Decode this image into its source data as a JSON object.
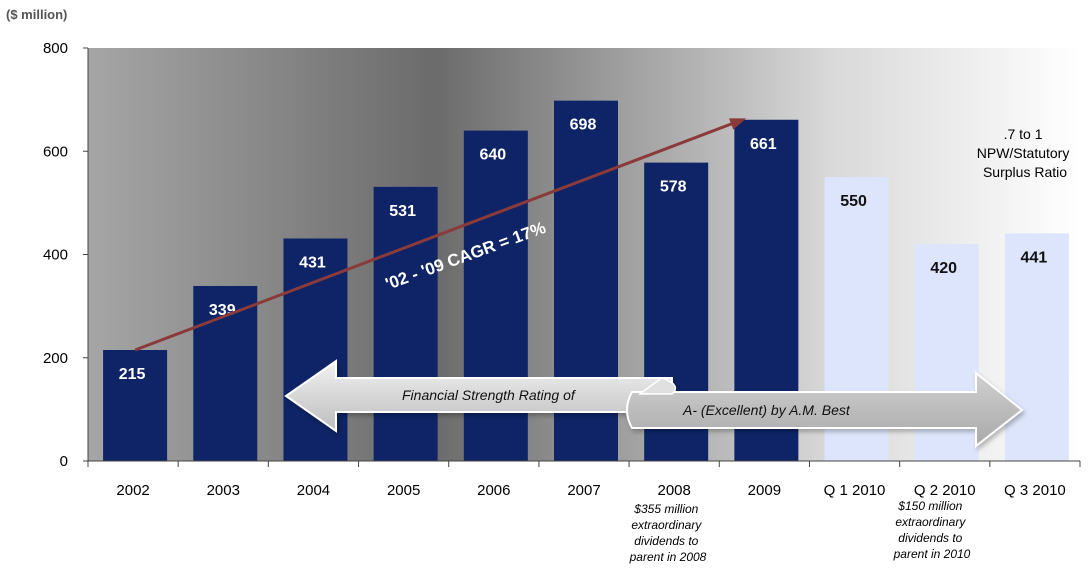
{
  "chart_data": {
    "type": "bar",
    "unit_label": "($ million)",
    "categories": [
      "2002",
      "2003",
      "2004",
      "2005",
      "2006",
      "2007",
      "2008",
      "2009",
      "Q 1 2010",
      "Q 2 2010",
      "Q 3 2010"
    ],
    "values": [
      215,
      339,
      431,
      531,
      640,
      698,
      578,
      661,
      550,
      420,
      441
    ],
    "value_labels": [
      "215",
      "339",
      "431",
      "531",
      "640",
      "698",
      "578",
      "661",
      "550",
      "420",
      "441"
    ],
    "ylim": [
      0,
      800
    ],
    "yticks": [
      0,
      200,
      400,
      600,
      800
    ],
    "colors": {
      "annual_bar": "#0e2466",
      "quarter_bar": "#dce5fb",
      "annual_label": "#ffffff",
      "quarter_label": "#111111",
      "trend_line": "#8b3a3a"
    },
    "trend": {
      "label": "'02 - '09 CAGR = 17%",
      "from_value": 215,
      "to_value": 661
    },
    "rating_arrow": {
      "left_text": "Financial Strength Rating of",
      "right_text": "A- (Excellent) by A.M. Best"
    },
    "ratio_note": [
      ".7 to 1",
      "NPW/Statutory",
      "Surplus Ratio"
    ],
    "annotations": {
      "2008": [
        "$355 million",
        "extraordinary",
        "dividends to",
        "parent in 2008"
      ],
      "Q 2 2010": [
        "$150 million",
        "extraordinary",
        "dividends to",
        "parent in 2010"
      ]
    }
  }
}
